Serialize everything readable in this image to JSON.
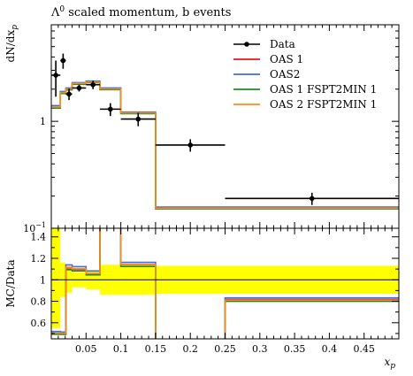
{
  "chart_data": {
    "type": "line",
    "title": "Λ0 scaled momentum, b events",
    "title_base": "Λ",
    "title_sup": "0",
    "title_rest": " scaled momentum, b events",
    "ylabel": "dN/dx",
    "ylabel_sub": "p",
    "xlabel": "x",
    "xlabel_sub": "p",
    "ratio_ylabel": "MC/Data",
    "xlim": [
      0.0,
      0.5
    ],
    "ylim": [
      0.1,
      8.0
    ],
    "yscale": "log",
    "ratio_ylim": [
      0.45,
      1.48
    ],
    "xticks": [
      0.05,
      0.1,
      0.15,
      0.2,
      0.25,
      0.3,
      0.35,
      0.4,
      0.45
    ],
    "xtick_labels": [
      "0.05",
      "0.1",
      "0.15",
      "0.2",
      "0.25",
      "0.3",
      "0.35",
      "0.4",
      "0.45"
    ],
    "yticks": [
      {
        "value": 1,
        "base": "1",
        "exp": ""
      },
      {
        "value": 0.1,
        "base": "10",
        "exp": "−1"
      }
    ],
    "ratio_yticks": [
      {
        "value": 0.6,
        "label": "0.6"
      },
      {
        "value": 0.8,
        "label": "0.8"
      },
      {
        "value": 1.0,
        "label": "1"
      },
      {
        "value": 1.2,
        "label": "1.2"
      },
      {
        "value": 1.4,
        "label": "1.4"
      }
    ],
    "legend_position": "top-right",
    "bin_edges": [
      0.0,
      0.013,
      0.021,
      0.03,
      0.05,
      0.07,
      0.1,
      0.15,
      0.25,
      0.5
    ],
    "data": {
      "name": "Data",
      "color": "#000000",
      "x": [
        0.0065,
        0.017,
        0.0255,
        0.04,
        0.06,
        0.085,
        0.125,
        0.2,
        0.375
      ],
      "xerr": [
        0.0065,
        0.004,
        0.0045,
        0.01,
        0.01,
        0.015,
        0.025,
        0.05,
        0.125
      ],
      "y": [
        2.7,
        3.7,
        1.8,
        2.05,
        2.2,
        1.3,
        1.05,
        0.6,
        0.19
      ],
      "yerr": [
        1.0,
        0.6,
        0.22,
        0.15,
        0.2,
        0.18,
        0.15,
        0.08,
        0.025
      ]
    },
    "series": [
      {
        "name": "OAS 1",
        "color": "#e41a1c",
        "values": [
          1.35,
          1.85,
          2.0,
          2.25,
          2.32,
          2.0,
          1.2,
          0.155,
          0.155
        ]
      },
      {
        "name": "OAS2",
        "color": "#3a6fe0",
        "values": [
          1.4,
          1.9,
          2.05,
          2.3,
          2.38,
          2.05,
          1.22,
          0.158,
          0.158
        ]
      },
      {
        "name": "OAS 1 FSPT2MIN 1",
        "color": "#1f8a1f",
        "values": [
          1.33,
          1.82,
          1.97,
          2.22,
          2.3,
          1.98,
          1.18,
          0.152,
          0.152
        ]
      },
      {
        "name": "OAS 2 FSPT2MIN 1",
        "color": "#ff8c1a",
        "values": [
          1.36,
          1.86,
          2.01,
          2.26,
          2.33,
          2.01,
          1.2,
          0.154,
          0.154
        ]
      }
    ],
    "ratio_band_color": "#ffff00",
    "ratio_band": {
      "lo": [
        0.55,
        0.84,
        0.88,
        0.93,
        0.91,
        0.86,
        0.86,
        0.87,
        0.87
      ],
      "hi": [
        1.48,
        1.16,
        1.12,
        1.07,
        1.09,
        1.14,
        1.14,
        1.13,
        1.13
      ]
    }
  }
}
